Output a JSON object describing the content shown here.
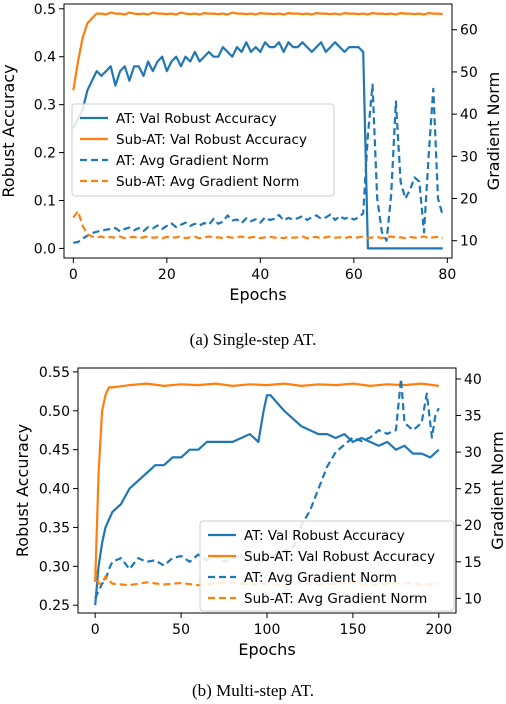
{
  "captions": [
    "(a) Single-step AT.",
    "(b) Multi-step AT."
  ],
  "colors": {
    "at": "#1f77b4",
    "sub_at": "#ff7f0e"
  },
  "chart_data": [
    {
      "type": "line",
      "xlabel": "Epochs",
      "ylabel": "Robust Accuracy",
      "y2label": "Gradient Norm",
      "xlim": [
        -2,
        81
      ],
      "ylim": [
        -0.02,
        0.51
      ],
      "y2lim": [
        5.9,
        66.1
      ],
      "xticks": [
        0,
        20,
        40,
        60,
        80
      ],
      "yticks": [
        0.0,
        0.1,
        0.2,
        0.3,
        0.4,
        0.5
      ],
      "y2ticks": [
        10,
        20,
        30,
        40,
        50,
        60
      ],
      "legend_position": "center-left",
      "series": [
        {
          "name": "AT: Val Robust Accuracy",
          "axis": "left",
          "style": "solid",
          "color": "#1f77b4",
          "x": [
            0,
            1,
            2,
            3,
            4,
            5,
            6,
            7,
            8,
            9,
            10,
            11,
            12,
            13,
            14,
            15,
            16,
            17,
            18,
            19,
            20,
            21,
            22,
            23,
            24,
            25,
            26,
            27,
            28,
            29,
            30,
            31,
            32,
            33,
            34,
            35,
            36,
            37,
            38,
            39,
            40,
            41,
            42,
            43,
            44,
            45,
            46,
            47,
            48,
            49,
            50,
            51,
            52,
            53,
            54,
            55,
            56,
            57,
            58,
            59,
            60,
            61,
            62,
            63,
            64,
            65,
            66,
            67,
            68,
            69,
            70,
            71,
            72,
            73,
            74,
            75,
            76,
            77,
            78,
            79
          ],
          "y": [
            0.25,
            0.27,
            0.29,
            0.33,
            0.35,
            0.37,
            0.36,
            0.37,
            0.38,
            0.34,
            0.37,
            0.38,
            0.35,
            0.38,
            0.38,
            0.36,
            0.39,
            0.37,
            0.39,
            0.4,
            0.37,
            0.39,
            0.4,
            0.38,
            0.4,
            0.39,
            0.41,
            0.39,
            0.4,
            0.41,
            0.4,
            0.4,
            0.42,
            0.41,
            0.4,
            0.42,
            0.41,
            0.43,
            0.41,
            0.42,
            0.41,
            0.43,
            0.42,
            0.42,
            0.43,
            0.41,
            0.43,
            0.42,
            0.42,
            0.43,
            0.42,
            0.41,
            0.42,
            0.43,
            0.41,
            0.42,
            0.43,
            0.42,
            0.41,
            0.42,
            0.42,
            0.42,
            0.41,
            0.0,
            0.0,
            0.0,
            0.0,
            0.0,
            0.0,
            0.0,
            0.0,
            0.0,
            0.0,
            0.0,
            0.0,
            0.0,
            0.0,
            0.0,
            0.0,
            0.0
          ]
        },
        {
          "name": "Sub-AT: Val Robust Accuracy",
          "axis": "left",
          "style": "solid",
          "color": "#ff7f0e",
          "x": [
            0,
            1,
            2,
            3,
            4,
            5,
            6,
            7,
            8,
            9,
            10,
            11,
            12,
            13,
            14,
            15,
            16,
            17,
            18,
            19,
            20,
            21,
            22,
            23,
            24,
            25,
            26,
            27,
            28,
            29,
            30,
            31,
            32,
            33,
            34,
            35,
            36,
            37,
            38,
            39,
            40,
            41,
            42,
            43,
            44,
            45,
            46,
            47,
            48,
            49,
            50,
            51,
            52,
            53,
            54,
            55,
            56,
            57,
            58,
            59,
            60,
            61,
            62,
            63,
            64,
            65,
            66,
            67,
            68,
            69,
            70,
            71,
            72,
            73,
            74,
            75,
            76,
            77,
            78,
            79
          ],
          "y": [
            0.33,
            0.39,
            0.44,
            0.47,
            0.48,
            0.49,
            0.49,
            0.488,
            0.492,
            0.49,
            0.49,
            0.488,
            0.492,
            0.49,
            0.489,
            0.49,
            0.488,
            0.492,
            0.49,
            0.49,
            0.489,
            0.49,
            0.488,
            0.492,
            0.49,
            0.489,
            0.49,
            0.488,
            0.491,
            0.49,
            0.49,
            0.489,
            0.49,
            0.488,
            0.492,
            0.49,
            0.49,
            0.489,
            0.49,
            0.488,
            0.491,
            0.49,
            0.49,
            0.489,
            0.49,
            0.488,
            0.491,
            0.49,
            0.49,
            0.489,
            0.49,
            0.488,
            0.491,
            0.49,
            0.49,
            0.489,
            0.49,
            0.488,
            0.491,
            0.49,
            0.49,
            0.489,
            0.49,
            0.488,
            0.491,
            0.49,
            0.49,
            0.489,
            0.49,
            0.488,
            0.491,
            0.49,
            0.49,
            0.489,
            0.49,
            0.488,
            0.491,
            0.49,
            0.49,
            0.489
          ]
        },
        {
          "name": "AT: Avg Gradient Norm",
          "axis": "right",
          "style": "dashed",
          "color": "#1f77b4",
          "x": [
            0,
            1,
            2,
            3,
            4,
            5,
            6,
            7,
            8,
            9,
            10,
            11,
            12,
            13,
            14,
            15,
            16,
            17,
            18,
            19,
            20,
            21,
            22,
            23,
            24,
            25,
            26,
            27,
            28,
            29,
            30,
            31,
            32,
            33,
            34,
            35,
            36,
            37,
            38,
            39,
            40,
            41,
            42,
            43,
            44,
            45,
            46,
            47,
            48,
            49,
            50,
            51,
            52,
            53,
            54,
            55,
            56,
            57,
            58,
            59,
            60,
            61,
            62,
            63,
            64,
            65,
            66,
            67,
            68,
            69,
            70,
            71,
            72,
            73,
            74,
            75,
            76,
            77,
            78,
            79
          ],
          "y": [
            9.5,
            9.7,
            10.5,
            11.2,
            11.8,
            12.1,
            12.4,
            12.6,
            12.8,
            13.0,
            12.2,
            12.8,
            13.1,
            12.5,
            13.0,
            12.3,
            13.2,
            12.9,
            13.6,
            12.8,
            13.5,
            14.1,
            13.2,
            13.8,
            14.3,
            13.5,
            14.0,
            13.6,
            14.2,
            13.8,
            15.2,
            14.0,
            14.5,
            16.0,
            14.8,
            15.0,
            14.2,
            15.3,
            14.6,
            15.1,
            14.3,
            15.5,
            14.9,
            15.2,
            16.1,
            14.8,
            15.4,
            15.0,
            15.3,
            15.8,
            14.9,
            15.6,
            16.0,
            15.2,
            15.5,
            16.2,
            14.9,
            15.8,
            15.2,
            15.6,
            15.0,
            15.5,
            16.5,
            35.0,
            47.0,
            20.0,
            12.0,
            10.0,
            21.0,
            43.0,
            24.0,
            20.0,
            22.0,
            25.0,
            24.0,
            12.0,
            30.0,
            46.0,
            20.0,
            16.0
          ]
        },
        {
          "name": "Sub-AT: Avg Gradient Norm",
          "axis": "right",
          "style": "dashed",
          "color": "#ff7f0e",
          "x": [
            0,
            1,
            2,
            3,
            4,
            5,
            6,
            7,
            8,
            9,
            10,
            11,
            12,
            13,
            14,
            15,
            16,
            17,
            18,
            19,
            20,
            21,
            22,
            23,
            24,
            25,
            26,
            27,
            28,
            29,
            30,
            31,
            32,
            33,
            34,
            35,
            36,
            37,
            38,
            39,
            40,
            41,
            42,
            43,
            44,
            45,
            46,
            47,
            48,
            49,
            50,
            51,
            52,
            53,
            54,
            55,
            56,
            57,
            58,
            59,
            60,
            61,
            62,
            63,
            64,
            65,
            66,
            67,
            68,
            69,
            70,
            71,
            72,
            73,
            74,
            75,
            76,
            77,
            78,
            79
          ],
          "y": [
            15.5,
            17.0,
            13.5,
            11.5,
            11.0,
            10.8,
            11.0,
            10.6,
            10.9,
            10.7,
            11.0,
            10.6,
            10.8,
            10.9,
            10.6,
            10.8,
            11.0,
            10.7,
            10.8,
            10.6,
            10.9,
            10.7,
            10.8,
            11.0,
            10.6,
            10.8,
            10.9,
            10.6,
            10.8,
            11.0,
            10.7,
            10.8,
            10.6,
            10.9,
            10.7,
            10.8,
            11.0,
            10.6,
            10.8,
            10.9,
            10.6,
            10.8,
            11.0,
            10.7,
            10.8,
            10.6,
            10.9,
            10.7,
            10.8,
            11.0,
            10.6,
            10.8,
            10.9,
            10.6,
            10.8,
            11.0,
            10.7,
            10.8,
            10.6,
            10.9,
            10.7,
            10.8,
            11.0,
            10.6,
            10.8,
            10.9,
            10.6,
            10.8,
            11.0,
            10.7,
            10.8,
            10.6,
            10.9,
            10.7,
            10.8,
            11.0,
            10.6,
            10.8,
            10.9,
            10.6
          ]
        }
      ]
    },
    {
      "type": "line",
      "xlabel": "Epochs",
      "ylabel": "Robust Accuracy",
      "y2label": "Gradient Norm",
      "xlim": [
        -10,
        210
      ],
      "ylim": [
        0.24,
        0.555
      ],
      "y2lim": [
        8.0,
        41.5
      ],
      "xticks": [
        0,
        50,
        100,
        150,
        200
      ],
      "yticks": [
        0.25,
        0.3,
        0.35,
        0.4,
        0.45,
        0.5,
        0.55
      ],
      "y2ticks": [
        10,
        15,
        20,
        25,
        30,
        35,
        40
      ],
      "legend_position": "lower-right",
      "series": [
        {
          "name": "AT: Val Robust Accuracy",
          "axis": "left",
          "style": "solid",
          "color": "#1f77b4",
          "x": [
            0,
            2,
            4,
            6,
            8,
            10,
            15,
            20,
            25,
            30,
            35,
            40,
            45,
            50,
            55,
            60,
            65,
            70,
            75,
            80,
            85,
            90,
            95,
            98,
            100,
            102,
            104,
            106,
            108,
            110,
            115,
            120,
            125,
            130,
            135,
            140,
            145,
            150,
            155,
            160,
            165,
            170,
            175,
            180,
            185,
            190,
            195,
            200
          ],
          "y": [
            0.25,
            0.3,
            0.33,
            0.35,
            0.36,
            0.37,
            0.38,
            0.4,
            0.41,
            0.42,
            0.43,
            0.43,
            0.44,
            0.44,
            0.45,
            0.45,
            0.46,
            0.46,
            0.46,
            0.46,
            0.465,
            0.47,
            0.46,
            0.5,
            0.52,
            0.52,
            0.515,
            0.51,
            0.505,
            0.5,
            0.49,
            0.48,
            0.475,
            0.47,
            0.47,
            0.465,
            0.47,
            0.46,
            0.465,
            0.46,
            0.455,
            0.46,
            0.45,
            0.455,
            0.445,
            0.445,
            0.44,
            0.45
          ]
        },
        {
          "name": "Sub-AT: Val Robust Accuracy",
          "axis": "left",
          "style": "solid",
          "color": "#ff7f0e",
          "x": [
            0,
            2,
            4,
            6,
            8,
            10,
            20,
            30,
            40,
            50,
            60,
            70,
            80,
            90,
            100,
            110,
            120,
            130,
            140,
            150,
            160,
            170,
            180,
            190,
            200
          ],
          "y": [
            0.28,
            0.42,
            0.5,
            0.52,
            0.53,
            0.53,
            0.533,
            0.535,
            0.532,
            0.534,
            0.533,
            0.535,
            0.532,
            0.534,
            0.533,
            0.535,
            0.532,
            0.534,
            0.533,
            0.535,
            0.532,
            0.534,
            0.533,
            0.535,
            0.532
          ]
        },
        {
          "name": "AT: Avg Gradient Norm",
          "axis": "right",
          "style": "dashed",
          "color": "#1f77b4",
          "x": [
            0,
            2,
            4,
            6,
            8,
            10,
            15,
            20,
            25,
            30,
            35,
            40,
            45,
            50,
            55,
            60,
            65,
            70,
            75,
            80,
            85,
            90,
            95,
            100,
            105,
            110,
            115,
            118,
            120,
            125,
            130,
            135,
            140,
            145,
            150,
            155,
            160,
            165,
            170,
            175,
            178,
            180,
            185,
            190,
            193,
            196,
            198,
            200
          ],
          "y": [
            10.0,
            11.0,
            12.0,
            12.5,
            14.0,
            15.0,
            15.5,
            14.0,
            15.5,
            15.0,
            15.2,
            14.5,
            15.5,
            15.8,
            15.0,
            16.0,
            15.2,
            15.8,
            15.0,
            15.5,
            15.8,
            15.0,
            15.5,
            15.2,
            16.0,
            16.5,
            17.0,
            18.0,
            20.0,
            22.0,
            25.0,
            28.0,
            30.0,
            31.0,
            32.0,
            31.5,
            32.0,
            33.0,
            32.5,
            33.0,
            40.0,
            34.0,
            33.0,
            34.0,
            38.0,
            32.0,
            35.0,
            36.0
          ]
        },
        {
          "name": "Sub-AT: Avg Gradient Norm",
          "axis": "right",
          "style": "dashed",
          "color": "#ff7f0e",
          "x": [
            0,
            2,
            4,
            6,
            8,
            10,
            20,
            30,
            40,
            50,
            60,
            70,
            80,
            90,
            100,
            110,
            120,
            130,
            140,
            150,
            160,
            170,
            180,
            190,
            200
          ],
          "y": [
            14.0,
            12.0,
            12.0,
            13.0,
            12.5,
            12.0,
            11.8,
            12.2,
            11.9,
            12.1,
            11.8,
            12.0,
            12.2,
            11.9,
            12.0,
            11.8,
            12.1,
            11.9,
            12.0,
            12.2,
            11.8,
            12.0,
            12.1,
            11.9,
            12.0
          ]
        }
      ]
    }
  ]
}
